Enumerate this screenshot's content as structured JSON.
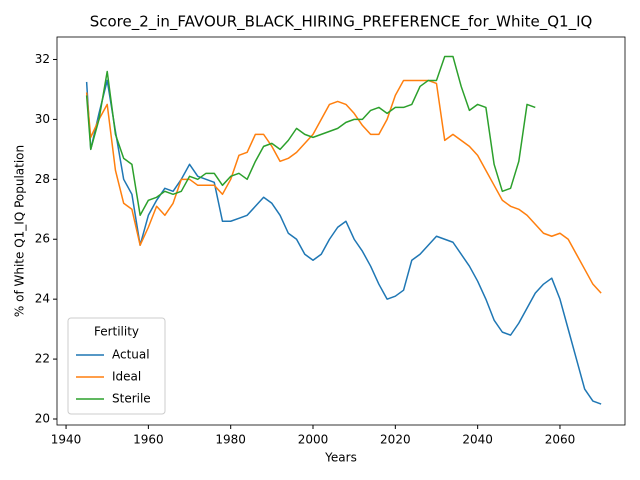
{
  "chart_data": {
    "type": "line",
    "title": "Score_2_in_FAVOUR_BLACK_HIRING_PREFERENCE_for_White_Q1_IQ",
    "x_label": "Years",
    "y_label": "% of White Q1_IQ Population",
    "x": [
      1945,
      1946,
      1948,
      1950,
      1952,
      1954,
      1956,
      1958,
      1960,
      1962,
      1964,
      1966,
      1968,
      1970,
      1972,
      1974,
      1976,
      1978,
      1980,
      1982,
      1984,
      1986,
      1988,
      1990,
      1992,
      1994,
      1996,
      1998,
      2000,
      2002,
      2004,
      2006,
      2008,
      2010,
      2012,
      2014,
      2016,
      2018,
      2020,
      2022,
      2024,
      2026,
      2028,
      2030,
      2032,
      2034,
      2036,
      2038,
      2040,
      2042,
      2044,
      2046,
      2048,
      2050,
      2052,
      2054,
      2056,
      2058,
      2060,
      2062,
      2064,
      2066,
      2068,
      2070
    ],
    "series": [
      {
        "name": "Actual",
        "color": "#1f77b4",
        "values": [
          31.25,
          29.0,
          30.2,
          31.3,
          29.6,
          28.0,
          27.5,
          25.8,
          26.8,
          27.3,
          27.7,
          27.6,
          28.0,
          28.5,
          28.1,
          28.0,
          27.9,
          26.6,
          26.6,
          26.7,
          26.8,
          27.1,
          27.4,
          27.2,
          26.8,
          26.2,
          26.0,
          25.5,
          25.3,
          25.5,
          26.0,
          26.4,
          26.6,
          26.0,
          25.6,
          25.1,
          24.5,
          24.0,
          24.1,
          24.3,
          25.3,
          25.5,
          25.8,
          26.1,
          26.0,
          25.9,
          25.5,
          25.1,
          24.6,
          24.0,
          23.3,
          22.9,
          22.8,
          23.2,
          23.7,
          24.2,
          24.5,
          24.7,
          24.0,
          23.0,
          22.0,
          21.0,
          20.6,
          20.5
        ]
      },
      {
        "name": "Ideal",
        "color": "#ff7f0e",
        "values": [
          30.9,
          29.4,
          30.0,
          30.5,
          28.3,
          27.2,
          27.0,
          25.8,
          26.4,
          27.1,
          26.8,
          27.2,
          28.0,
          28.0,
          27.8,
          27.8,
          27.8,
          27.5,
          28.0,
          28.8,
          28.9,
          29.5,
          29.5,
          29.1,
          28.6,
          28.7,
          28.9,
          29.2,
          29.5,
          30.0,
          30.5,
          30.6,
          30.5,
          30.2,
          29.8,
          29.5,
          29.5,
          30.0,
          30.8,
          31.3,
          31.3,
          31.3,
          31.3,
          31.2,
          29.3,
          29.5,
          29.3,
          29.1,
          28.8,
          28.3,
          27.8,
          27.3,
          27.1,
          27.0,
          26.8,
          26.5,
          26.2,
          26.1,
          26.2,
          26.0,
          25.5,
          25.0,
          24.5,
          24.2
        ]
      },
      {
        "name": "Sterile",
        "color": "#2ca02c",
        "values": [
          30.8,
          29.0,
          30.0,
          31.6,
          29.5,
          28.7,
          28.5,
          26.8,
          27.3,
          27.4,
          27.6,
          27.5,
          27.6,
          28.1,
          28.0,
          28.2,
          28.2,
          27.8,
          28.1,
          28.2,
          28.0,
          28.6,
          29.1,
          29.2,
          29.0,
          29.3,
          29.7,
          29.5,
          29.4,
          29.5,
          29.6,
          29.7,
          29.9,
          30.0,
          30.0,
          30.3,
          30.4,
          30.2,
          30.4,
          30.4,
          30.5,
          31.1,
          31.3,
          31.3,
          32.1,
          32.1,
          31.1,
          30.3,
          30.5,
          30.4,
          28.5,
          27.6,
          27.7,
          28.6,
          30.5,
          30.4,
          null,
          null,
          null,
          null,
          null,
          null,
          null,
          null
        ]
      }
    ],
    "xlim": [
      1937.8,
      2075.8
    ],
    "ylim": [
      19.8,
      32.75
    ],
    "xticks": [
      1940,
      1960,
      1980,
      2000,
      2020,
      2040,
      2060
    ],
    "yticks": [
      20,
      22,
      24,
      26,
      28,
      30,
      32
    ],
    "grid": false,
    "legend": {
      "title": "Fertility",
      "position": "lower left"
    }
  }
}
